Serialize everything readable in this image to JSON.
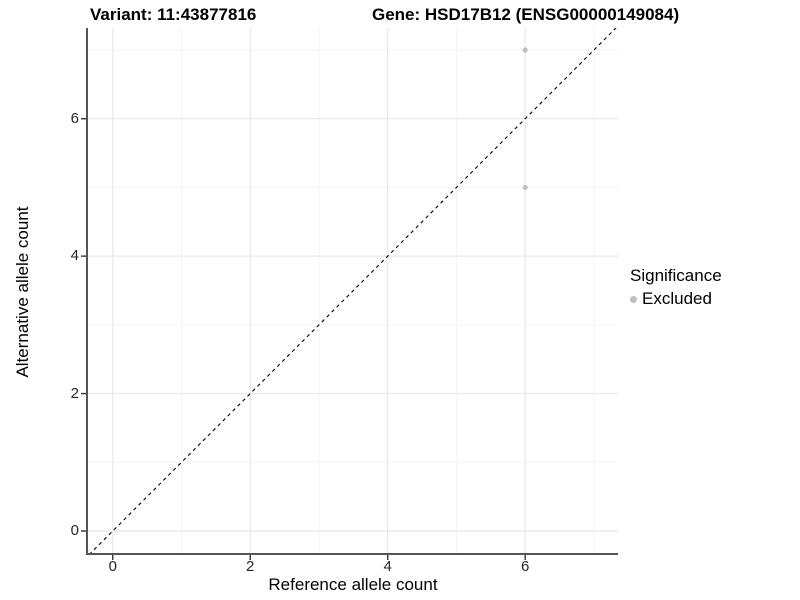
{
  "chart_data": {
    "type": "scatter",
    "title_left": "Variant: 11:43877816",
    "title_right": "Gene: HSD17B12 (ENSG00000149084)",
    "xlabel": "Reference allele count",
    "ylabel": "Alternative allele count",
    "xlim": [
      -0.36,
      7.35
    ],
    "ylim": [
      -0.32,
      7.32
    ],
    "x_major_ticks": [
      0,
      2,
      4,
      6
    ],
    "y_major_ticks": [
      0,
      2,
      4,
      6
    ],
    "x_minor_ticks": [
      1,
      3,
      5,
      7
    ],
    "y_minor_ticks": [
      1,
      3,
      5,
      7
    ],
    "grid": true,
    "series": [
      {
        "name": "Excluded",
        "color": "#bfbfbf",
        "points": [
          {
            "x": 6,
            "y": 7
          },
          {
            "x": 6,
            "y": 5
          }
        ]
      }
    ],
    "reference_line": {
      "kind": "identity y=x",
      "style": "dashed",
      "color": "#000000"
    },
    "legend": {
      "title": "Significance",
      "position": "right",
      "entries": [
        {
          "label": "Excluded",
          "marker": "circle",
          "color": "#bfbfbf"
        }
      ]
    }
  },
  "colors": {
    "background": "#ffffff",
    "grid_major": "#e8e8e8",
    "grid_minor": "#f3f3f3",
    "axis_line": "#555555",
    "tick_mark": "#333333",
    "tick_text": "#262626",
    "point": "#bfbfbf"
  }
}
